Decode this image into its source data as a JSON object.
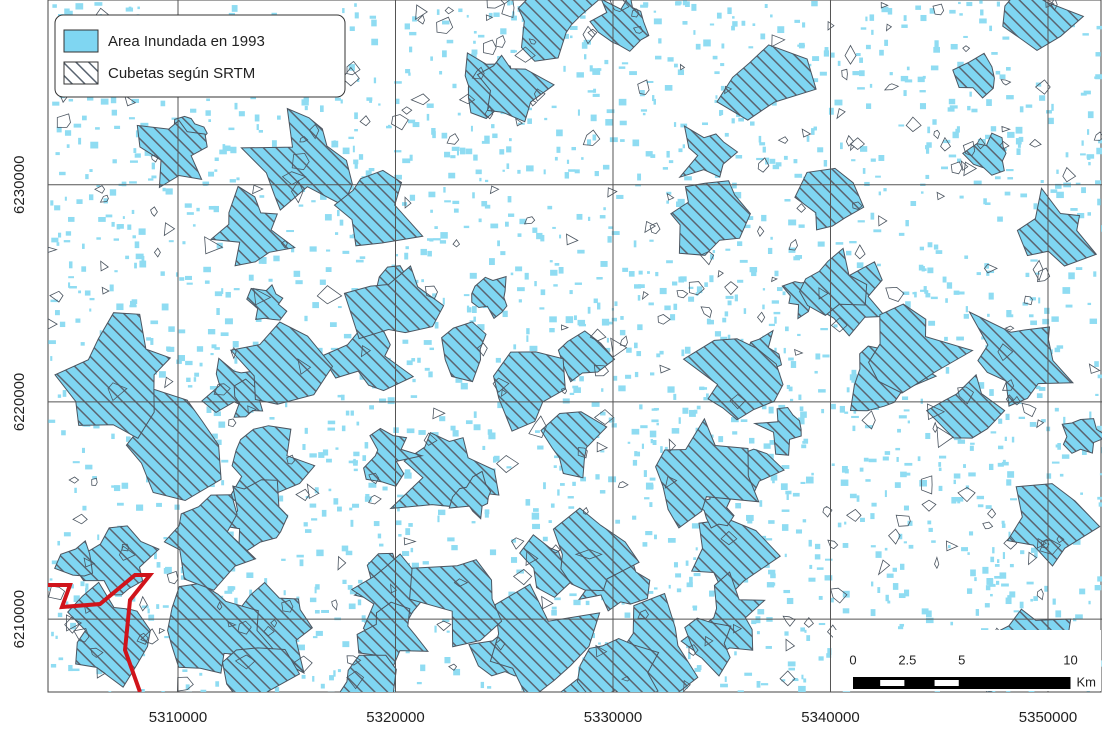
{
  "legend": {
    "items": [
      {
        "label": "Area Inundada en 1993"
      },
      {
        "label": "Cubetas según SRTM"
      }
    ]
  },
  "map": {
    "xlim": [
      5304023,
      5352483
    ],
    "ylim": [
      6206644,
      6238506
    ],
    "xticks": [
      5310000,
      5320000,
      5330000,
      5340000,
      5350000
    ],
    "yticks": [
      6210000,
      6220000,
      6230000
    ]
  },
  "scale_bar": {
    "ticks": [
      0,
      2.5,
      5,
      10
    ],
    "unit": "Km"
  }
}
